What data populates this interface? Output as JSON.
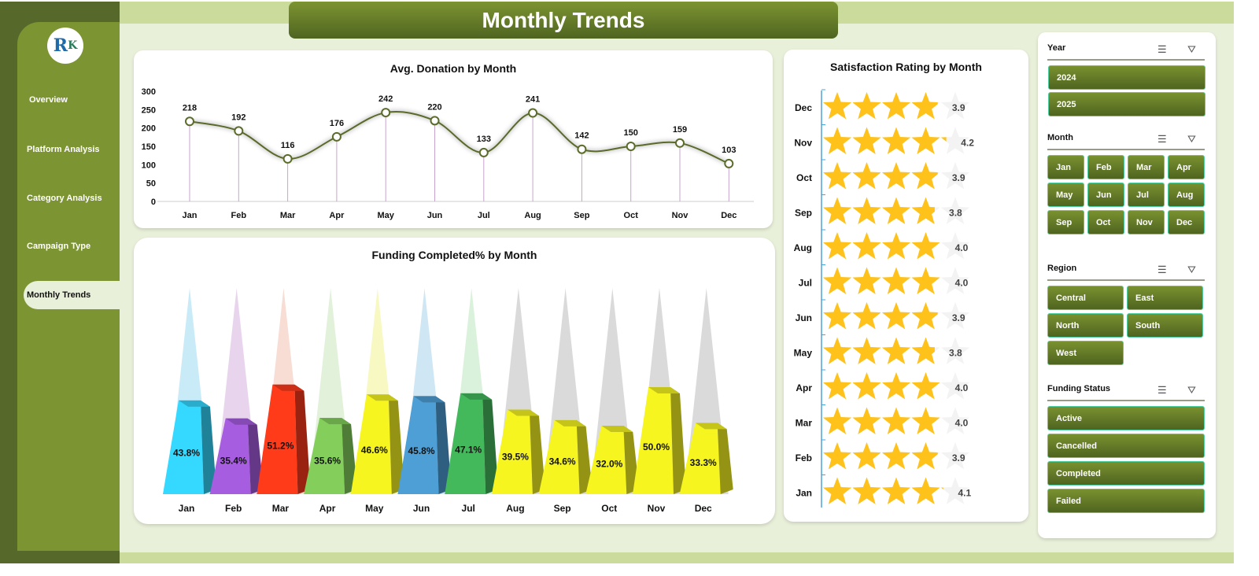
{
  "title": "Monthly Trends",
  "sidebar": {
    "logo": "RK",
    "items": [
      "Overview",
      "Platform Analysis",
      "Category Analysis",
      "Campaign Type",
      "Monthly Trends"
    ],
    "active": "Monthly Trends"
  },
  "months": [
    "Jan",
    "Feb",
    "Mar",
    "Apr",
    "May",
    "Jun",
    "Jul",
    "Aug",
    "Sep",
    "Oct",
    "Nov",
    "Dec"
  ],
  "chart_data": [
    {
      "type": "line",
      "title": "Avg. Donation by Month",
      "categories": [
        "Jan",
        "Feb",
        "Mar",
        "Apr",
        "May",
        "Jun",
        "Jul",
        "Aug",
        "Sep",
        "Oct",
        "Nov",
        "Dec"
      ],
      "values": [
        218,
        192,
        116,
        176,
        242,
        220,
        133,
        241,
        142,
        150,
        159,
        103
      ],
      "ylim": [
        0,
        300
      ],
      "yticks": [
        0,
        50,
        100,
        150,
        200,
        250,
        300
      ],
      "line_color": "#5a6b2a"
    },
    {
      "type": "bar",
      "title": "Funding Completed% by Month",
      "categories": [
        "Jan",
        "Feb",
        "Mar",
        "Apr",
        "May",
        "Jun",
        "Jul",
        "Aug",
        "Sep",
        "Oct",
        "Nov",
        "Dec"
      ],
      "values": [
        43.8,
        35.4,
        51.2,
        35.6,
        46.6,
        45.8,
        47.1,
        39.5,
        34.6,
        32.0,
        50.0,
        33.3
      ],
      "labels": [
        "43.8%",
        "35.4%",
        "51.2%",
        "35.6%",
        "46.6%",
        "45.8%",
        "47.1%",
        "39.5%",
        "34.6%",
        "32.0%",
        "50.0%",
        "33.3%"
      ],
      "colors": [
        "#35d8ff",
        "#a65de0",
        "#ff3b1a",
        "#84cf5c",
        "#f6f520",
        "#4d9fd6",
        "#44b95c",
        "#f6f520",
        "#f6f520",
        "#f6f520",
        "#f6f520",
        "#f6f520"
      ]
    },
    {
      "type": "bar",
      "title": "Satisfaction Rating by Month",
      "categories": [
        "Dec",
        "Nov",
        "Oct",
        "Sep",
        "Aug",
        "Jul",
        "Jun",
        "May",
        "Apr",
        "Mar",
        "Feb",
        "Jan"
      ],
      "values": [
        3.9,
        4.2,
        3.9,
        3.8,
        4.0,
        4.0,
        3.9,
        3.8,
        4.0,
        4.0,
        3.9,
        4.1
      ],
      "labels": [
        "3.9",
        "4.2",
        "3.9",
        "3.8",
        "4.0",
        "4.0",
        "3.9",
        "3.8",
        "4.0",
        "4.0",
        "3.9",
        "4.1"
      ],
      "xlim": [
        0,
        5
      ],
      "color": "#ffc21a"
    }
  ],
  "slicers": {
    "year": {
      "label": "Year",
      "items": [
        "2024",
        "2025"
      ]
    },
    "month": {
      "label": "Month",
      "items": [
        "Jan",
        "Feb",
        "Mar",
        "Apr",
        "May",
        "Jun",
        "Jul",
        "Aug",
        "Sep",
        "Oct",
        "Nov",
        "Dec"
      ]
    },
    "region": {
      "label": "Region",
      "items": [
        "Central",
        "East",
        "North",
        "South",
        "West"
      ]
    },
    "funding_status": {
      "label": "Funding Status",
      "items": [
        "Active",
        "Cancelled",
        "Completed",
        "Failed"
      ]
    },
    "icons": [
      "multi-select-icon",
      "clear-filter-icon"
    ]
  }
}
